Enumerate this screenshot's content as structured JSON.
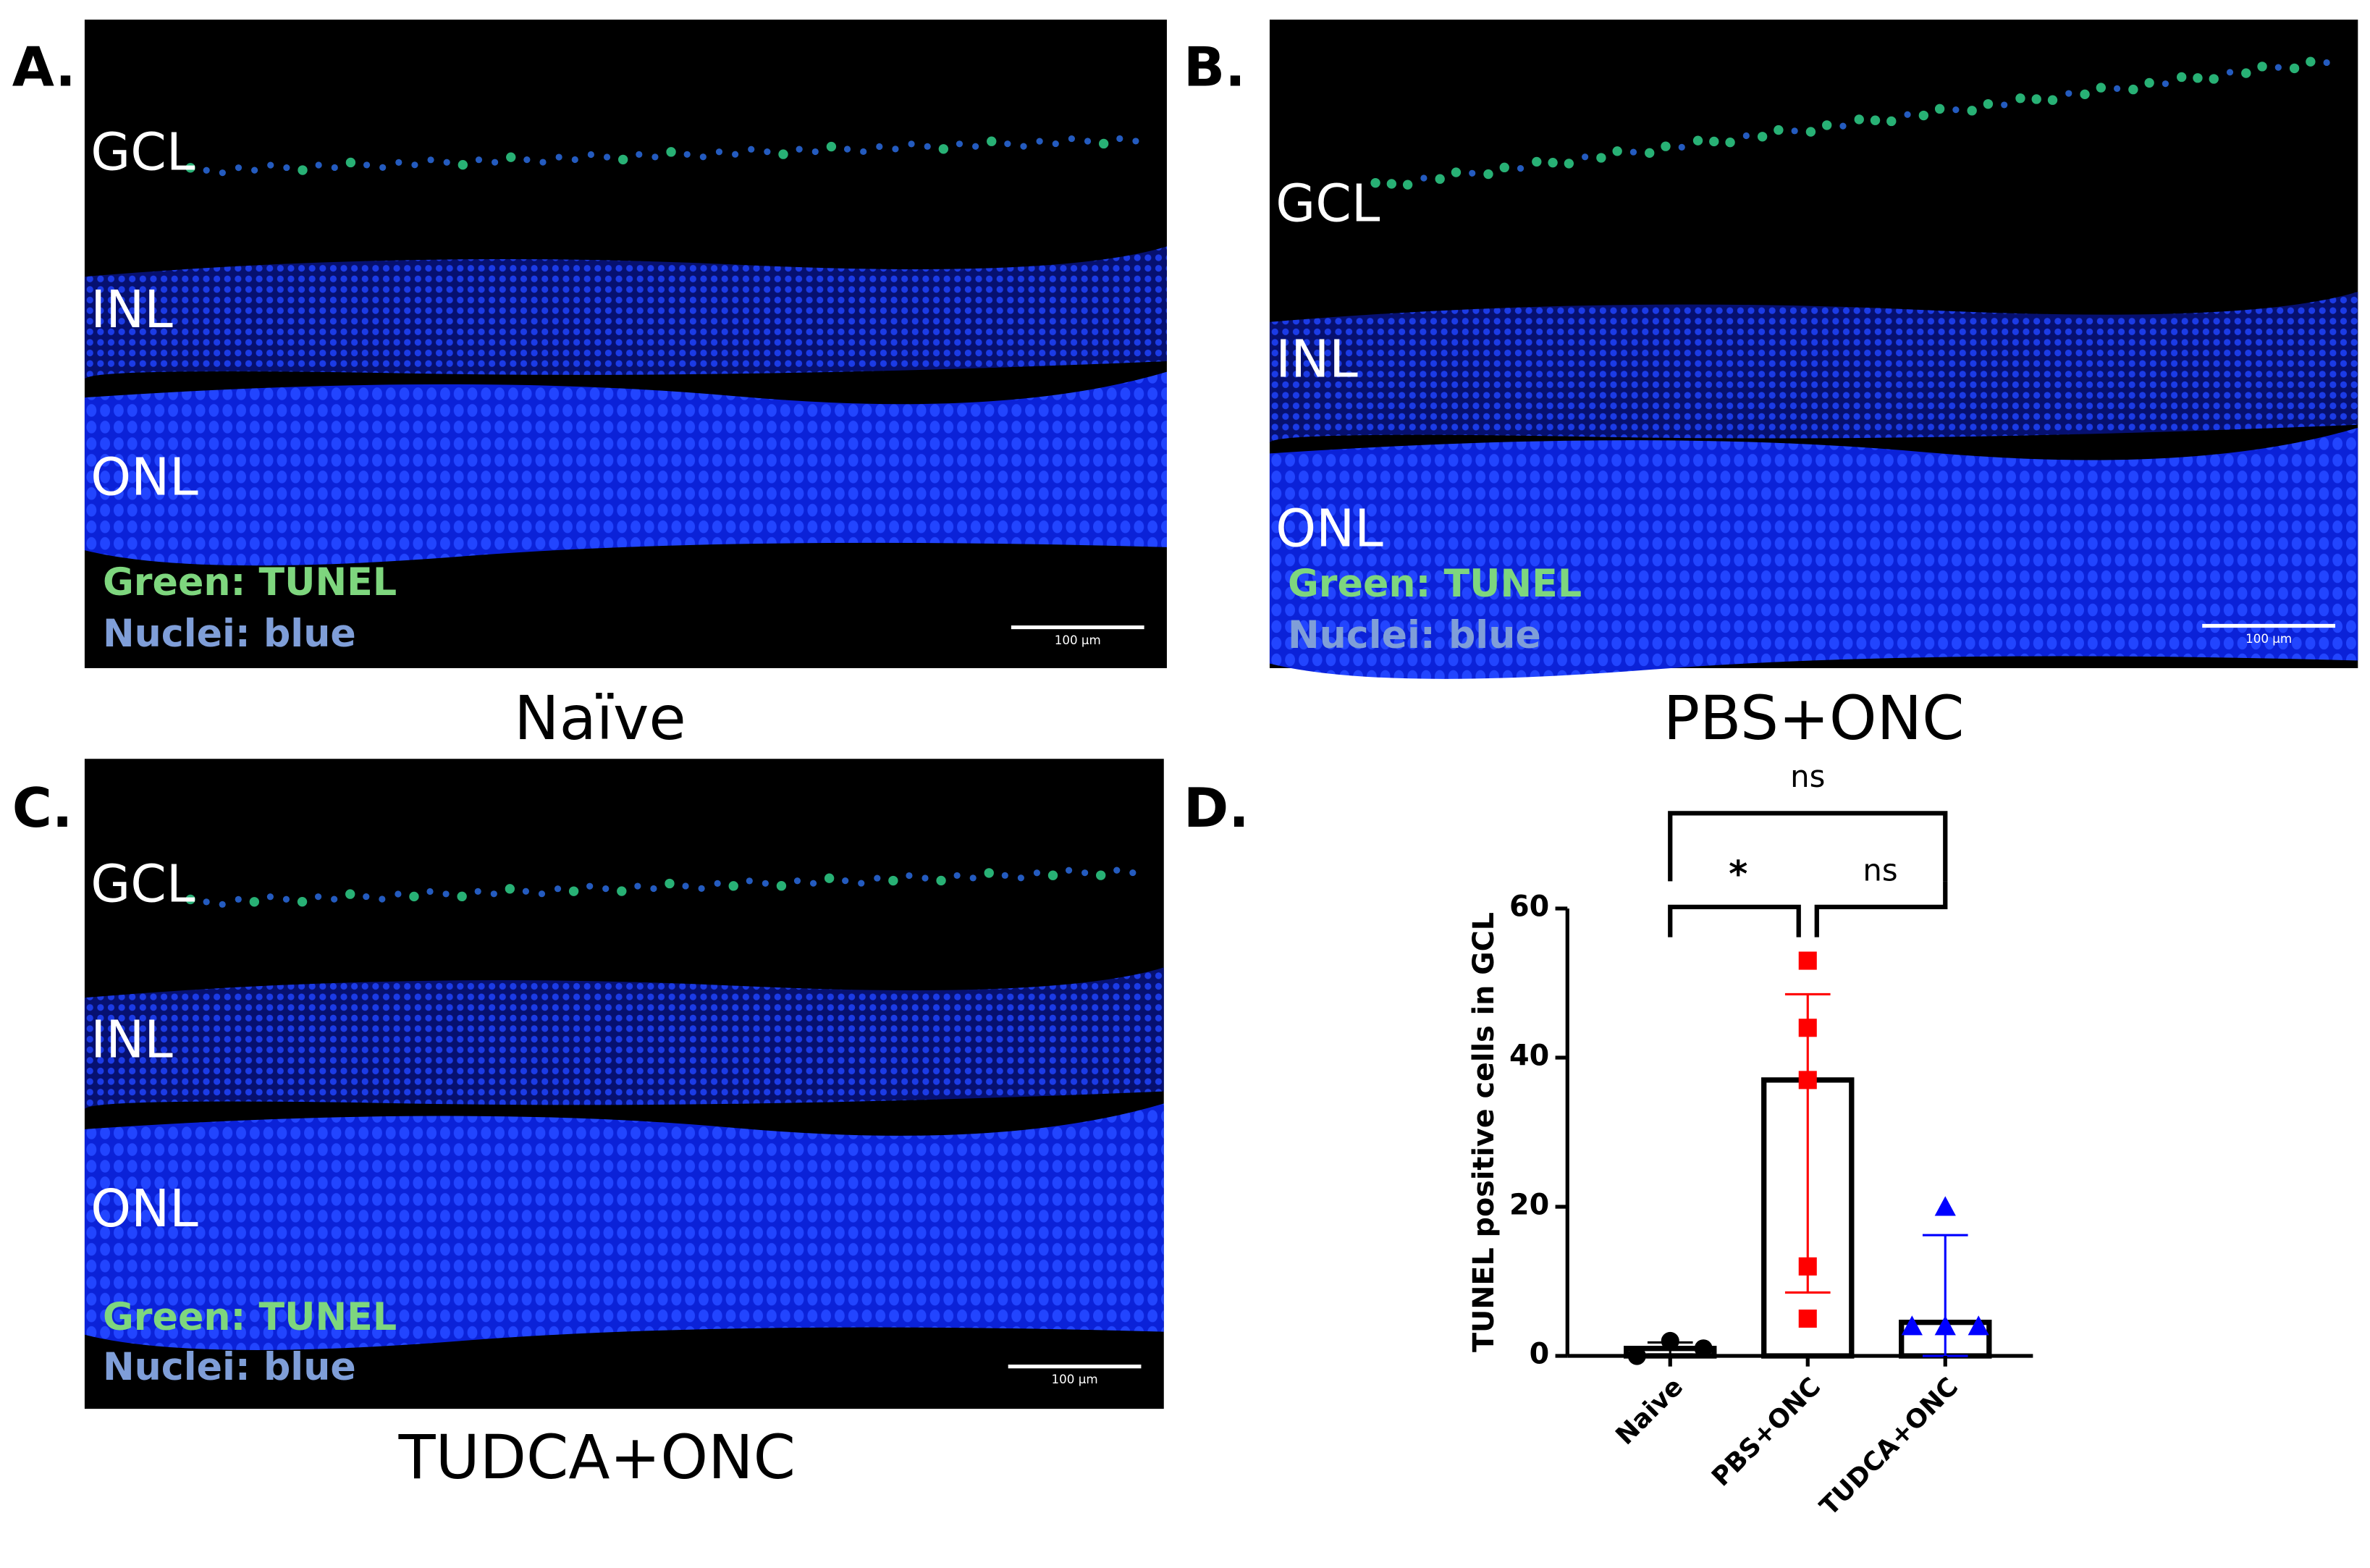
{
  "panels": [
    {
      "letter": "A.",
      "caption": "Naïve",
      "layers": [
        "GCL",
        "INL",
        "ONL"
      ],
      "legend": [
        "Green: TUNEL",
        "Nuclei: blue"
      ],
      "scale_bar": "100 µm"
    },
    {
      "letter": "B.",
      "caption": "PBS+ONC",
      "layers": [
        "GCL",
        "INL",
        "ONL"
      ],
      "legend": [
        "Green: TUNEL",
        "Nuclei: blue"
      ],
      "scale_bar": "100 µm"
    },
    {
      "letter": "C.",
      "caption": "TUDCA+ONC",
      "layers": [
        "GCL",
        "INL",
        "ONL"
      ],
      "legend": [
        "Green: TUNEL",
        "Nuclei: blue"
      ],
      "scale_bar": "100 µm"
    }
  ],
  "chart_data": {
    "type": "bar",
    "panel_label": "D.",
    "y_label": "TUNEL positive cells in GCL",
    "categories": [
      "Naive",
      "PBS+ONC",
      "TUDCA+ONC"
    ],
    "values": [
      1,
      37,
      4.5
    ],
    "error_plus": [
      0.8,
      11.5,
      11.7
    ],
    "error_minus": [
      0.8,
      28.5,
      4.5
    ],
    "points": [
      [
        0,
        2,
        1
      ],
      [
        53,
        44,
        37,
        12,
        5
      ],
      [
        20,
        4,
        4,
        4
      ]
    ],
    "colors": [
      "#000000",
      "#ff0000",
      "#0000ff"
    ],
    "markers": [
      "circle",
      "square",
      "triangle"
    ],
    "ylim": [
      0,
      60
    ],
    "yticks": [
      0,
      20,
      40,
      60
    ],
    "annotations": [
      "ns",
      "*",
      "ns"
    ]
  }
}
